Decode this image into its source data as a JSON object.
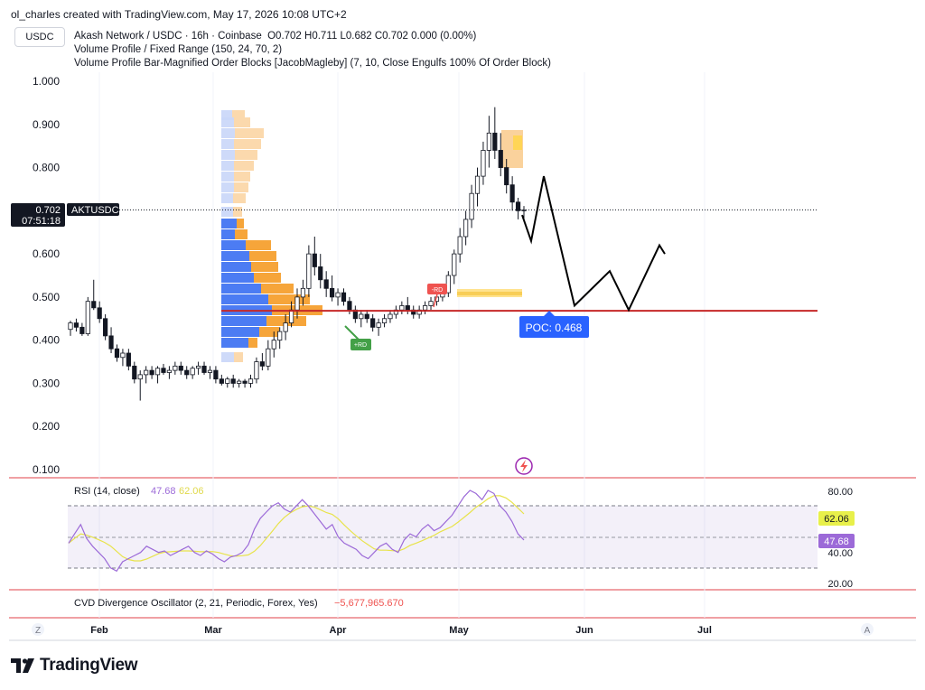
{
  "credit": "ol_charles created with TradingView.com, May 17, 2026 10:08 UTC+2",
  "symbol_box": "USDC",
  "header": {
    "line1_pair": "Akash Network / USDC · 16h · Coinbase",
    "ohlc": "O0.702  H0.711  L0.682  C0.702  0.000 (0.00%)",
    "line2": "Volume Profile / Fixed Range (150, 24, 70, 2)",
    "line3": "Volume Profile Bar-Magnified Order Blocks [JacobMagleby] (7, 10, Close Engulfs 100% Of Order Block)"
  },
  "price_badge": {
    "value": "0.702",
    "timer": "07:51:18",
    "ticker": "AKTUSDC",
    "color": "#131722"
  },
  "poc_label": {
    "text": "POC: 0.468",
    "color": "#2962ff"
  },
  "markers": {
    "down": "-RD",
    "up": "+RD"
  },
  "rsi": {
    "title": "RSI (14, close)",
    "value1": "47.68",
    "value2": "62.06",
    "axis_ticks": [
      "80.00",
      "40.00",
      "20.00"
    ],
    "badge_yellow": "62.06",
    "badge_purple": "47.68"
  },
  "cvd": {
    "title": "CVD Divergence Oscillator (2, 21, Periodic, Forex, Yes)",
    "value": "−5,677,965.670"
  },
  "time_axis": {
    "labels": [
      "Feb",
      "Mar",
      "Apr",
      "May",
      "Jun",
      "Jul"
    ],
    "left_btn": "Z",
    "right_btn": "A"
  },
  "brand": "TradingView",
  "icons": [
    "tradingview-logo-icon",
    "lightning-icon"
  ],
  "colors": {
    "up": "#26a69a",
    "down": "#ef5350",
    "poc_line": "#c62828",
    "rsi": "#9c6ad8",
    "rsi_ma": "#e8e34a",
    "vp_blue": "#4c7cf3",
    "vp_orange": "#f6a53a"
  },
  "chart_data": {
    "type": "candlestick",
    "price_axis": [
      "1.000",
      "0.900",
      "0.800",
      "0.600",
      "0.500",
      "0.400",
      "0.300",
      "0.200",
      "0.100"
    ],
    "ylim": [
      0.1,
      1.0
    ],
    "current_price": 0.702,
    "poc": 0.468,
    "candles": [
      [
        0.425,
        0.445,
        0.41,
        0.44
      ],
      [
        0.44,
        0.45,
        0.42,
        0.43
      ],
      [
        0.43,
        0.44,
        0.41,
        0.415
      ],
      [
        0.415,
        0.5,
        0.41,
        0.49
      ],
      [
        0.49,
        0.54,
        0.47,
        0.475
      ],
      [
        0.475,
        0.49,
        0.44,
        0.45
      ],
      [
        0.45,
        0.46,
        0.4,
        0.41
      ],
      [
        0.41,
        0.43,
        0.37,
        0.38
      ],
      [
        0.38,
        0.39,
        0.35,
        0.36
      ],
      [
        0.36,
        0.38,
        0.34,
        0.37
      ],
      [
        0.37,
        0.38,
        0.33,
        0.34
      ],
      [
        0.34,
        0.35,
        0.3,
        0.31
      ],
      [
        0.31,
        0.33,
        0.26,
        0.32
      ],
      [
        0.32,
        0.34,
        0.3,
        0.33
      ],
      [
        0.33,
        0.34,
        0.31,
        0.32
      ],
      [
        0.32,
        0.34,
        0.3,
        0.335
      ],
      [
        0.335,
        0.345,
        0.32,
        0.325
      ],
      [
        0.325,
        0.34,
        0.31,
        0.33
      ],
      [
        0.33,
        0.35,
        0.32,
        0.34
      ],
      [
        0.34,
        0.35,
        0.32,
        0.33
      ],
      [
        0.33,
        0.34,
        0.31,
        0.32
      ],
      [
        0.32,
        0.34,
        0.31,
        0.335
      ],
      [
        0.335,
        0.35,
        0.32,
        0.34
      ],
      [
        0.34,
        0.35,
        0.32,
        0.325
      ],
      [
        0.325,
        0.34,
        0.31,
        0.33
      ],
      [
        0.33,
        0.34,
        0.3,
        0.31
      ],
      [
        0.31,
        0.32,
        0.295,
        0.3
      ],
      [
        0.3,
        0.315,
        0.29,
        0.31
      ],
      [
        0.31,
        0.32,
        0.29,
        0.3
      ],
      [
        0.3,
        0.31,
        0.29,
        0.305
      ],
      [
        0.305,
        0.31,
        0.29,
        0.3
      ],
      [
        0.3,
        0.32,
        0.29,
        0.31
      ],
      [
        0.31,
        0.36,
        0.3,
        0.35
      ],
      [
        0.35,
        0.37,
        0.33,
        0.34
      ],
      [
        0.34,
        0.4,
        0.33,
        0.38
      ],
      [
        0.38,
        0.42,
        0.36,
        0.4
      ],
      [
        0.4,
        0.43,
        0.38,
        0.42
      ],
      [
        0.42,
        0.46,
        0.4,
        0.44
      ],
      [
        0.44,
        0.49,
        0.43,
        0.47
      ],
      [
        0.47,
        0.52,
        0.45,
        0.5
      ],
      [
        0.5,
        0.54,
        0.48,
        0.52
      ],
      [
        0.52,
        0.62,
        0.5,
        0.6
      ],
      [
        0.6,
        0.64,
        0.55,
        0.57
      ],
      [
        0.57,
        0.6,
        0.52,
        0.54
      ],
      [
        0.54,
        0.56,
        0.5,
        0.52
      ],
      [
        0.52,
        0.55,
        0.49,
        0.5
      ],
      [
        0.5,
        0.52,
        0.48,
        0.51
      ],
      [
        0.51,
        0.52,
        0.48,
        0.49
      ],
      [
        0.49,
        0.5,
        0.46,
        0.47
      ],
      [
        0.47,
        0.48,
        0.44,
        0.45
      ],
      [
        0.45,
        0.47,
        0.43,
        0.46
      ],
      [
        0.46,
        0.47,
        0.44,
        0.45
      ],
      [
        0.45,
        0.46,
        0.42,
        0.43
      ],
      [
        0.43,
        0.45,
        0.41,
        0.44
      ],
      [
        0.44,
        0.46,
        0.43,
        0.45
      ],
      [
        0.45,
        0.47,
        0.44,
        0.46
      ],
      [
        0.46,
        0.48,
        0.45,
        0.47
      ],
      [
        0.47,
        0.49,
        0.46,
        0.48
      ],
      [
        0.48,
        0.5,
        0.46,
        0.47
      ],
      [
        0.47,
        0.48,
        0.45,
        0.46
      ],
      [
        0.46,
        0.48,
        0.45,
        0.47
      ],
      [
        0.47,
        0.49,
        0.46,
        0.48
      ],
      [
        0.48,
        0.5,
        0.47,
        0.49
      ],
      [
        0.49,
        0.51,
        0.48,
        0.5
      ],
      [
        0.5,
        0.52,
        0.49,
        0.51
      ],
      [
        0.51,
        0.56,
        0.5,
        0.55
      ],
      [
        0.55,
        0.61,
        0.53,
        0.6
      ],
      [
        0.6,
        0.66,
        0.58,
        0.64
      ],
      [
        0.64,
        0.7,
        0.62,
        0.68
      ],
      [
        0.68,
        0.76,
        0.66,
        0.74
      ],
      [
        0.74,
        0.8,
        0.71,
        0.78
      ],
      [
        0.78,
        0.86,
        0.76,
        0.84
      ],
      [
        0.84,
        0.92,
        0.8,
        0.88
      ],
      [
        0.88,
        0.94,
        0.82,
        0.84
      ],
      [
        0.84,
        0.88,
        0.78,
        0.8
      ],
      [
        0.8,
        0.82,
        0.74,
        0.76
      ],
      [
        0.76,
        0.78,
        0.7,
        0.72
      ],
      [
        0.72,
        0.73,
        0.68,
        0.7
      ],
      [
        0.7,
        0.711,
        0.682,
        0.702
      ]
    ],
    "projection": [
      [
        0.69,
        0.63
      ],
      [
        0.78,
        0.69
      ],
      [
        0.5,
        0.48
      ],
      [
        0.6,
        0.56
      ],
      [
        0.45,
        0.47
      ],
      [
        0.62,
        0.62
      ]
    ],
    "rsi_ma_note": "62.06",
    "rsi_value": 47.68
  }
}
